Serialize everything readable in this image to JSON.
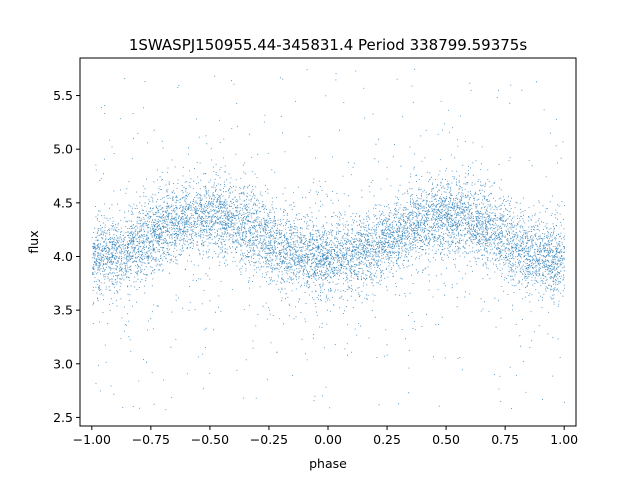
{
  "chart_data": {
    "type": "scatter",
    "title": "1SWASPJ150955.44-345831.4 Period 338799.59375s",
    "xlabel": "phase",
    "ylabel": "flux",
    "xlim": [
      -1.05,
      1.05
    ],
    "ylim": [
      2.42,
      5.85
    ],
    "xticks": [
      -1.0,
      -0.75,
      -0.5,
      -0.25,
      0.0,
      0.25,
      0.5,
      0.75,
      1.0
    ],
    "xtick_labels": [
      "−1.00",
      "−0.75",
      "−0.50",
      "−0.25",
      "0.00",
      "0.25",
      "0.50",
      "0.75",
      "1.00"
    ],
    "yticks": [
      2.5,
      3.0,
      3.5,
      4.0,
      4.5,
      5.0,
      5.5
    ],
    "ytick_labels": [
      "2.5",
      "3.0",
      "3.5",
      "4.0",
      "4.5",
      "5.0",
      "5.5"
    ],
    "grid": false,
    "marker_color": "#1f77b4",
    "phase_range": [
      -1.0,
      1.0
    ],
    "flux_range": [
      2.55,
      5.75
    ],
    "light_curve": {
      "phase": [
        -1.0,
        -0.9,
        -0.8,
        -0.7,
        -0.6,
        -0.5,
        -0.45,
        -0.4,
        -0.3,
        -0.2,
        -0.1,
        0.0,
        0.1,
        0.2,
        0.3,
        0.4,
        0.5,
        0.55,
        0.6,
        0.7,
        0.8,
        0.9,
        1.0
      ],
      "median_flux": [
        4.0,
        4.02,
        4.12,
        4.28,
        4.36,
        4.38,
        4.38,
        4.34,
        4.2,
        4.06,
        4.02,
        3.98,
        4.02,
        4.08,
        4.22,
        4.34,
        4.38,
        4.38,
        4.34,
        4.22,
        4.08,
        4.0,
        3.98
      ]
    }
  }
}
